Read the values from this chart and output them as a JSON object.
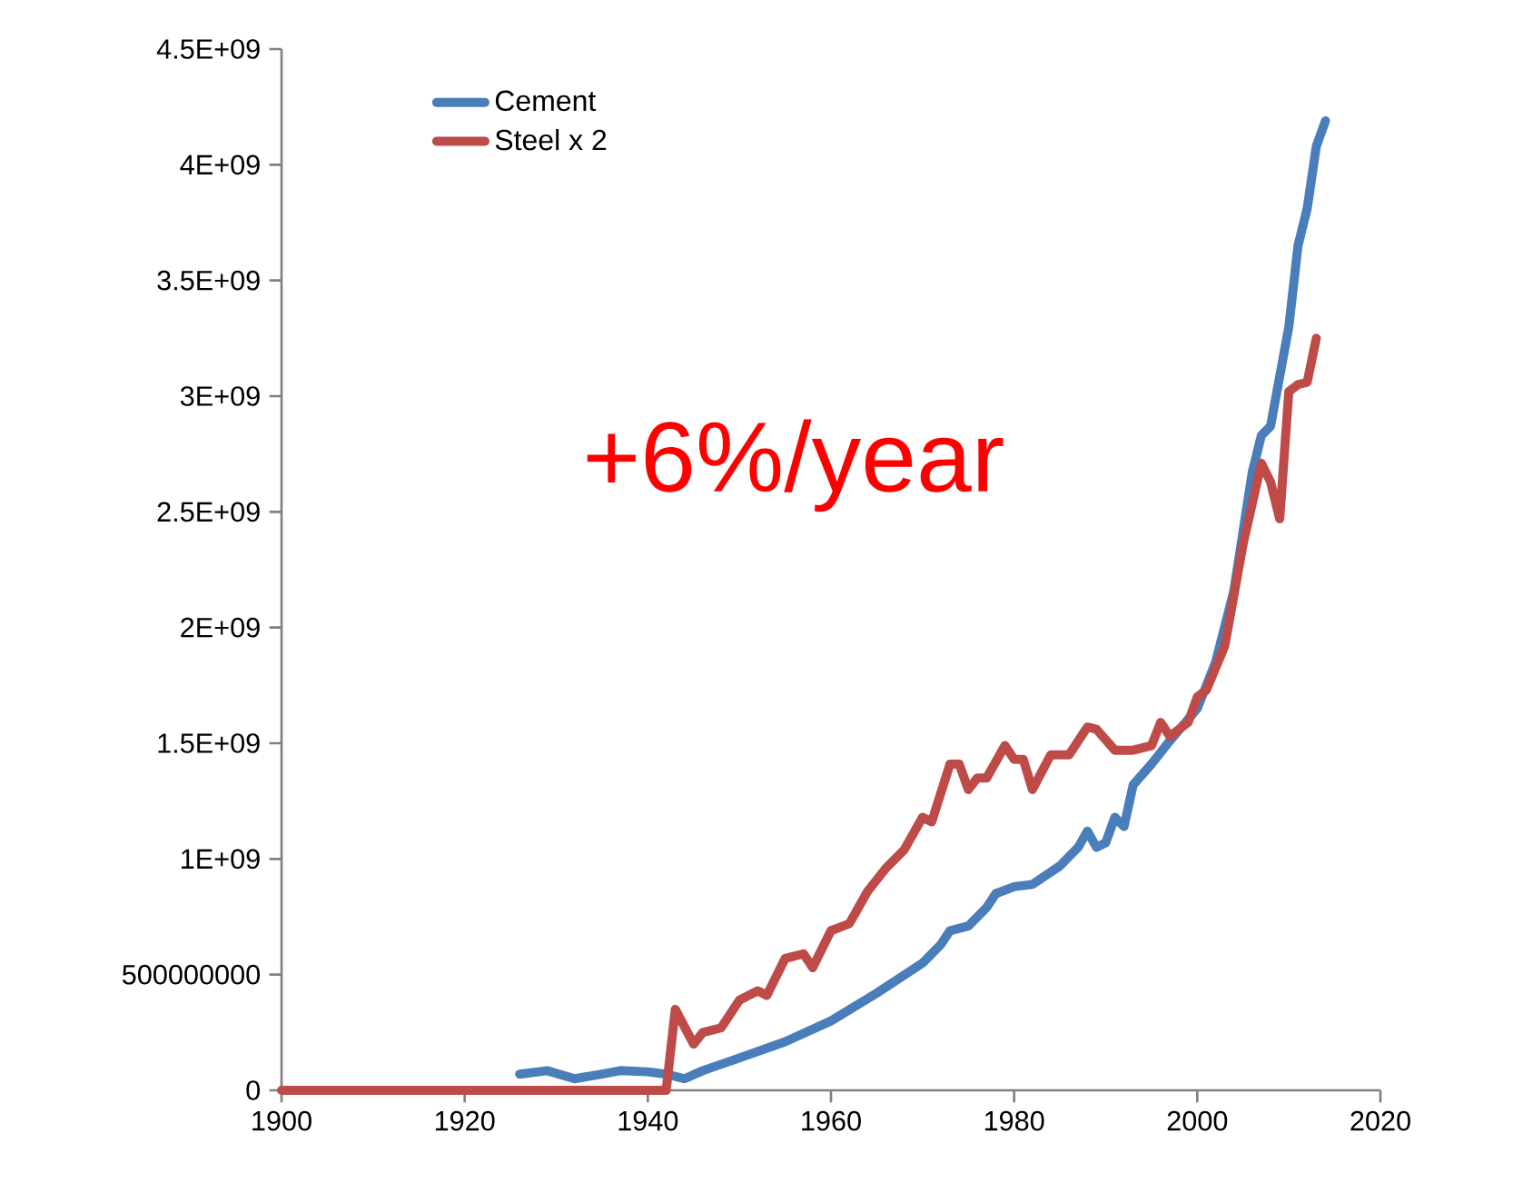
{
  "chart_data": {
    "type": "line",
    "series": [
      {
        "name": "Cement",
        "color": "#4a7ebb",
        "x": [
          1926,
          1929,
          1932,
          1935,
          1937,
          1940,
          1942,
          1944,
          1946,
          1950,
          1955,
          1960,
          1965,
          1970,
          1972,
          1973,
          1975,
          1977,
          1978,
          1980,
          1982,
          1985,
          1987,
          1988,
          1989,
          1990,
          1991,
          1992,
          1993,
          1995,
          1997,
          2000,
          2002,
          2004,
          2006,
          2007,
          2008,
          2010,
          2011,
          2012,
          2013,
          2014
        ],
        "values": [
          70000000.0,
          85000000.0,
          50000000.0,
          70000000.0,
          85000000.0,
          80000000.0,
          70000000.0,
          50000000.0,
          85000000.0,
          140000000.0,
          210000000.0,
          300000000.0,
          420000000.0,
          550000000.0,
          630000000.0,
          690000000.0,
          710000000.0,
          790000000.0,
          850000000.0,
          880000000.0,
          890000000.0,
          970000000.0,
          1050000000.0,
          1120000000.0,
          1050000000.0,
          1070000000.0,
          1180000000.0,
          1140000000.0,
          1320000000.0,
          1410000000.0,
          1510000000.0,
          1650000000.0,
          1850000000.0,
          2160000000.0,
          2670000000.0,
          2830000000.0,
          2870000000.0,
          3300000000.0,
          3650000000.0,
          3810000000.0,
          4080000000.0,
          4190000000.0
        ]
      },
      {
        "name": "Steel x 2",
        "color": "#be4b48",
        "x": [
          1900,
          1942,
          1943,
          1945,
          1946,
          1948,
          1950,
          1952,
          1953,
          1955,
          1957,
          1958,
          1960,
          1962,
          1964,
          1966,
          1968,
          1970,
          1971,
          1973,
          1974,
          1975,
          1976,
          1977,
          1979,
          1980,
          1981,
          1982,
          1984,
          1986,
          1988,
          1989,
          1991,
          1993,
          1995,
          1996,
          1997,
          1999,
          2000,
          2001,
          2003,
          2005,
          2007,
          2008,
          2009,
          2010,
          2011,
          2012,
          2013
        ],
        "values": [
          0,
          0,
          350000000.0,
          200000000.0,
          250000000.0,
          270000000.0,
          390000000.0,
          430000000.0,
          410000000.0,
          570000000.0,
          590000000.0,
          530000000.0,
          690000000.0,
          720000000.0,
          860000000.0,
          960000000.0,
          1040000000.0,
          1180000000.0,
          1160000000.0,
          1410000000.0,
          1410000000.0,
          1300000000.0,
          1350000000.0,
          1350000000.0,
          1490000000.0,
          1430000000.0,
          1430000000.0,
          1300000000.0,
          1450000000.0,
          1450000000.0,
          1570000000.0,
          1560000000.0,
          1470000000.0,
          1470000000.0,
          1490000000.0,
          1590000000.0,
          1530000000.0,
          1590000000.0,
          1700000000.0,
          1730000000.0,
          1920000000.0,
          2360000000.0,
          2710000000.0,
          2630000000.0,
          2470000000.0,
          3020000000.0,
          3050000000.0,
          3060000000.0,
          3250000000.0
        ]
      }
    ],
    "xlim": [
      1900,
      2020
    ],
    "xticks": [
      1900,
      1920,
      1940,
      1960,
      1980,
      2000,
      2020
    ],
    "ylim": [
      0,
      4500000000.0
    ],
    "yticks": [
      0,
      500000000,
      {
        "value": 1000000000.0,
        "label": "1E+09"
      },
      {
        "value": 1500000000.0,
        "label": "1.5E+09"
      },
      {
        "value": 2000000000.0,
        "label": "2E+09"
      },
      {
        "value": 2500000000.0,
        "label": "2.5E+09"
      },
      {
        "value": 3000000000.0,
        "label": "3E+09"
      },
      {
        "value": 3500000000.0,
        "label": "3.5E+09"
      },
      {
        "value": 4000000000.0,
        "label": "4E+09"
      },
      {
        "value": 4500000000.0,
        "label": "4.5E+09"
      }
    ],
    "legend": "top left",
    "annotations": [
      "+6%/year"
    ]
  }
}
